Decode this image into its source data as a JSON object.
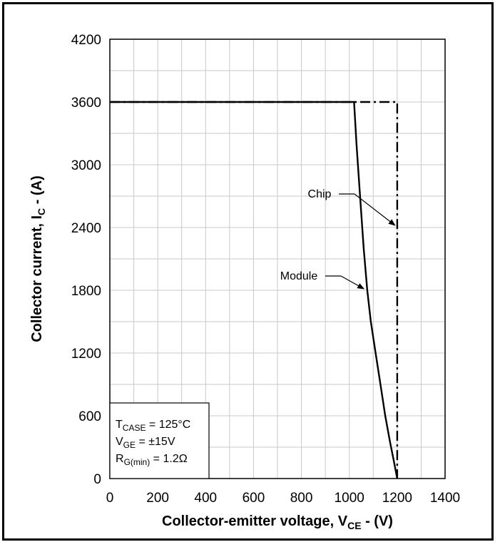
{
  "chart_data": {
    "type": "line",
    "xlabel": {
      "main": "Collector-emitter voltage, V",
      "sub": "CE",
      "tail": " - (V)"
    },
    "ylabel": {
      "main": "Collector current, I",
      "sub": "C",
      "tail": " - (A)"
    },
    "xlim": [
      0,
      1400
    ],
    "ylim": [
      0,
      4200
    ],
    "x_ticks": [
      0,
      200,
      400,
      600,
      800,
      1000,
      1200,
      1400
    ],
    "y_ticks": [
      0,
      600,
      1200,
      1800,
      2400,
      3000,
      3600,
      4200
    ],
    "grid": true,
    "series": [
      {
        "name": "Chip",
        "style": "dash-dot",
        "x": [
          0,
          1200,
          1200
        ],
        "y": [
          3600,
          3600,
          0
        ]
      },
      {
        "name": "Module",
        "style": "solid",
        "x": [
          0,
          1020,
          1030,
          1045,
          1060,
          1075,
          1090,
          1110,
          1130,
          1150,
          1170,
          1185,
          1200
        ],
        "y": [
          3600,
          3600,
          3200,
          2700,
          2200,
          1800,
          1500,
          1200,
          900,
          600,
          350,
          180,
          0
        ]
      }
    ],
    "annotations": [
      {
        "label": "Chip",
        "target": [
          1200,
          2400
        ]
      },
      {
        "label": "Module",
        "target": [
          1070,
          1800
        ]
      }
    ],
    "conditions": [
      {
        "main": "T",
        "sub": "CASE",
        "tail": " = 125°C"
      },
      {
        "main": "V",
        "sub": "GE",
        "tail": " = ±15V"
      },
      {
        "main": "R",
        "sub": "G(min)",
        "tail": " = 1.2Ω"
      }
    ]
  }
}
